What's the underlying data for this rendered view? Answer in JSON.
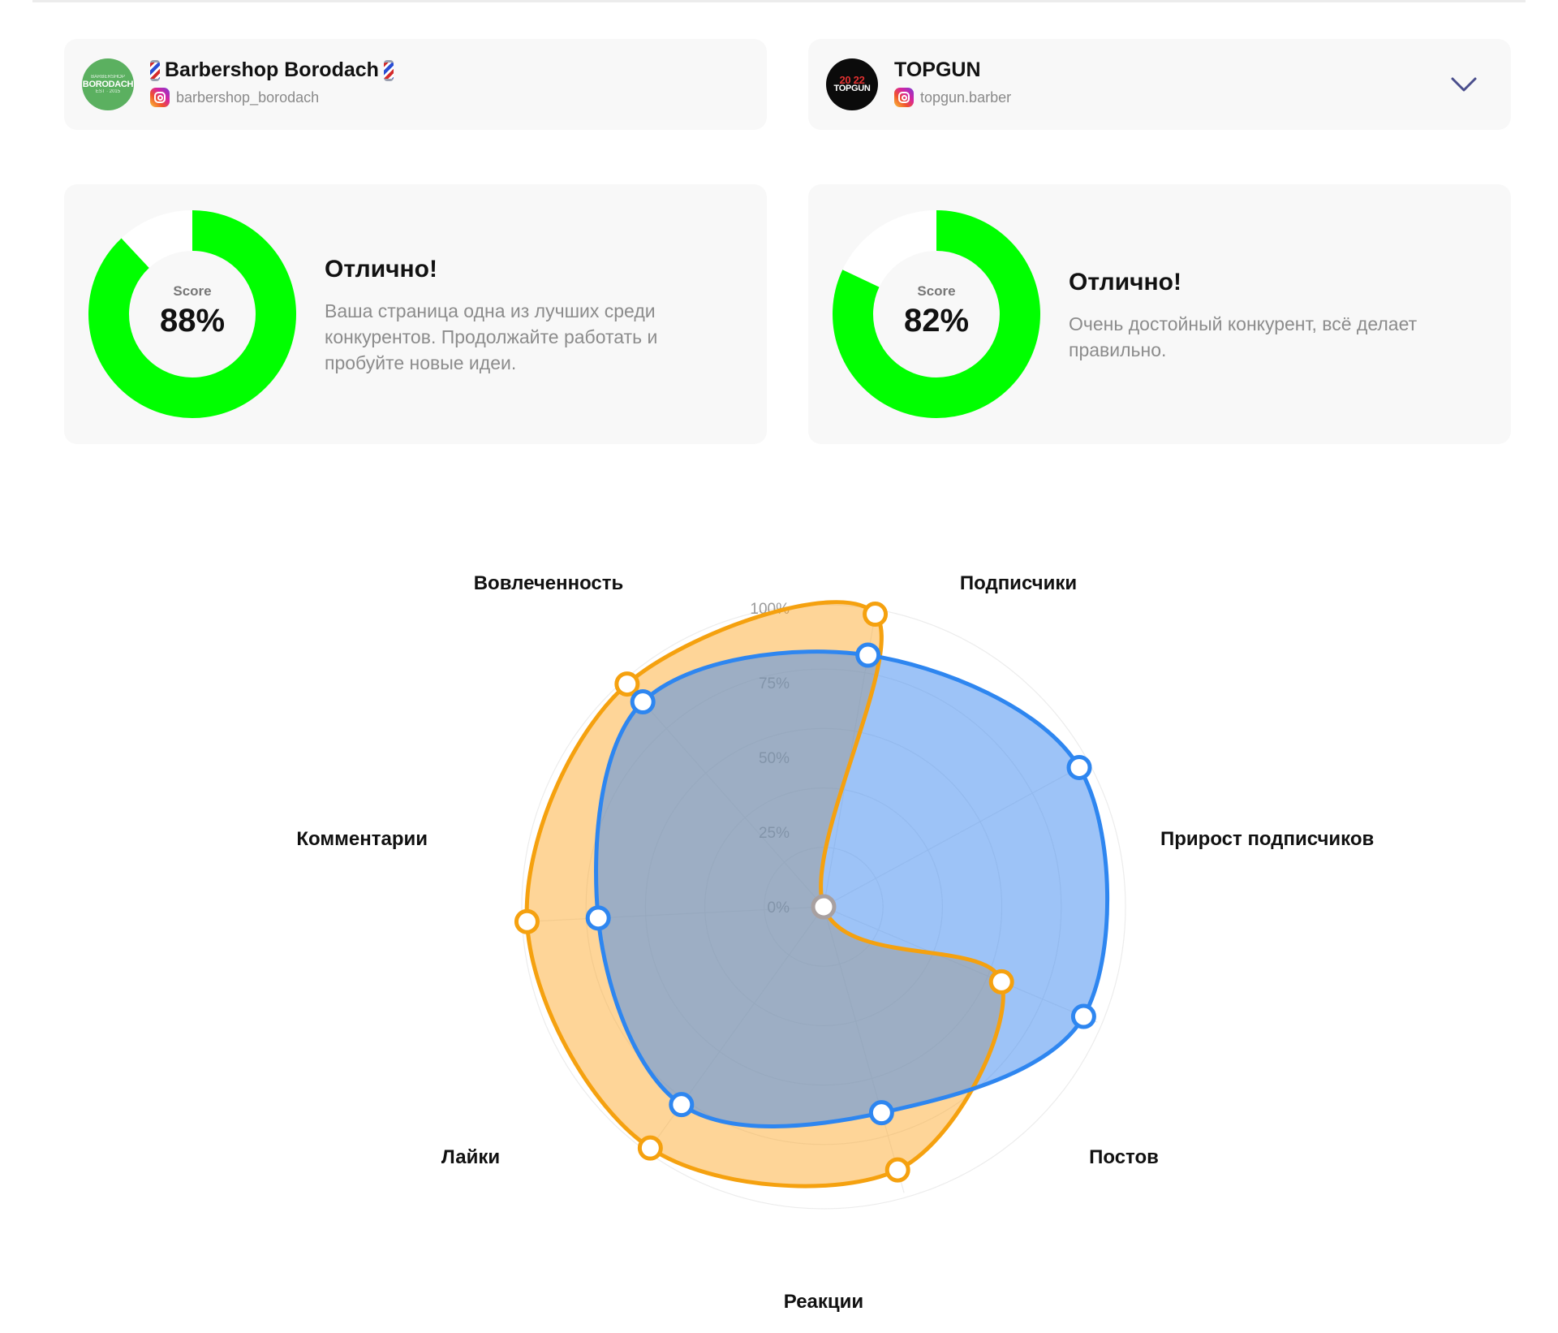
{
  "accounts": {
    "own": {
      "avatar_text": "BORODACH",
      "avatar_small_top": "BARBERSHOP",
      "avatar_small_bottom": "EST · 2015",
      "name": "Barbershop Borodach",
      "handle": "barbershop_borodach"
    },
    "competitor": {
      "avatar_text": "TOPGUN",
      "avatar_small_top": "20 22",
      "name": "TOPGUN",
      "handle": "topgun.barber"
    }
  },
  "scores": {
    "own": {
      "label": "Score",
      "value_text": "88%",
      "value": 88,
      "title": "Отлично!",
      "description": "Ваша страница одна из лучших среди конкурентов. Продолжайте работать и пробуйте новые идеи."
    },
    "competitor": {
      "label": "Score",
      "value_text": "82%",
      "value": 82,
      "title": "Отлично!",
      "description": "Очень достойный конкурент, всё делает правильно."
    }
  },
  "colors": {
    "score_fill": "#00ff00",
    "score_track": "#ffffff",
    "own_series": "#f5a10f",
    "competitor_series": "#2e86f0",
    "chevron": "#4a4e8c"
  },
  "chart_data": {
    "type": "radar",
    "categories": [
      "Подписчики",
      "Прирост подписчиков",
      "Постов",
      "Реакции",
      "Лайки",
      "Комментарии",
      "Вовлеченность"
    ],
    "tick_labels": [
      "0%",
      "25%",
      "50%",
      "75%",
      "100%"
    ],
    "r_range": [
      0,
      100
    ],
    "series": [
      {
        "values": [
          100,
          0,
          65,
          92,
          100,
          100,
          100
        ]
      },
      {
        "values": [
          86,
          98,
          95,
          72,
          82,
          76,
          92
        ]
      }
    ]
  }
}
